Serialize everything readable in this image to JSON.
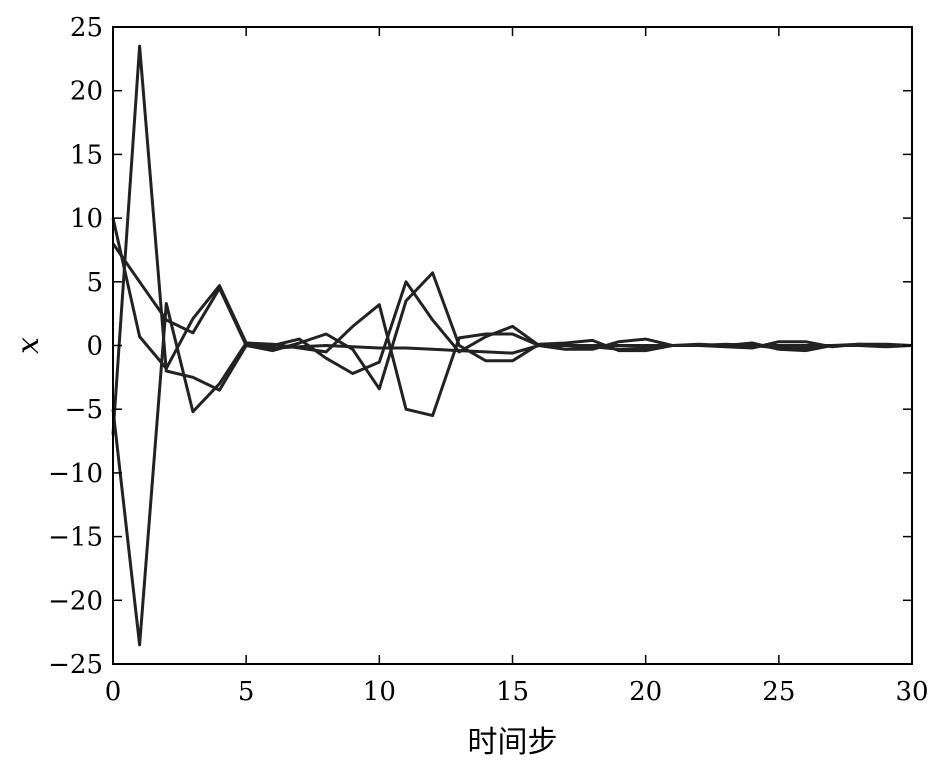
{
  "chart_data": {
    "type": "line",
    "title": "",
    "xlabel": "时间步",
    "ylabel": "x",
    "xlim": [
      0,
      30
    ],
    "ylim": [
      -25,
      25
    ],
    "xticks": [
      0,
      5,
      10,
      15,
      20,
      25,
      30
    ],
    "yticks": [
      25,
      20,
      15,
      10,
      5,
      0,
      -5,
      -10,
      -15,
      -20,
      -25
    ],
    "xtick_labels": [
      "0",
      "5",
      "10",
      "15",
      "20",
      "25",
      "30"
    ],
    "ytick_labels": [
      "25",
      "20",
      "15",
      "10",
      "5",
      "0",
      "−5",
      "−10",
      "−15",
      "−20",
      "−25"
    ],
    "grid": false,
    "line_color": "#222222",
    "series": [
      {
        "x": [
          0,
          1,
          2,
          3,
          4,
          5,
          6,
          7,
          8,
          9,
          10,
          11,
          12,
          13,
          14,
          15,
          16,
          17,
          18,
          19,
          20,
          21,
          22,
          23,
          24,
          25,
          26,
          27,
          28,
          29,
          30
        ],
        "values": [
          -7.0,
          23.5,
          -2.0,
          -2.5,
          -3.5,
          0.0,
          -0.2,
          -0.1,
          0.0,
          -0.1,
          -0.2,
          -0.2,
          -0.3,
          -0.4,
          -0.5,
          -0.6,
          0.0,
          0.0,
          0.0,
          0.0,
          0.0,
          0.0,
          0.0,
          0.0,
          0.0,
          0.0,
          0.0,
          0.0,
          0.0,
          0.0,
          0.0
        ]
      },
      {
        "x": [
          0,
          1,
          2,
          3,
          4,
          5,
          6,
          7,
          8,
          9,
          10,
          11,
          12,
          13,
          14,
          15,
          16,
          17,
          18,
          19,
          20,
          21,
          22,
          23,
          24,
          25,
          26,
          27,
          28,
          29,
          30
        ],
        "values": [
          -5.0,
          -23.5,
          3.3,
          -5.2,
          -3.0,
          0.2,
          0.0,
          0.5,
          -1.0,
          -2.2,
          -1.3,
          5.0,
          2.0,
          -0.5,
          0.7,
          1.5,
          0.0,
          -0.3,
          -0.3,
          0.3,
          0.5,
          0.0,
          0.0,
          -0.1,
          -0.2,
          0.3,
          0.3,
          -0.1,
          0.1,
          0.0,
          0.0
        ]
      },
      {
        "x": [
          0,
          1,
          2,
          3,
          4,
          5,
          6,
          7,
          8,
          9,
          10,
          11,
          12,
          13,
          14,
          15,
          16,
          17,
          18,
          19,
          20,
          21,
          22,
          23,
          24,
          25,
          26,
          27,
          28,
          29,
          30
        ],
        "values": [
          8.0,
          5.0,
          2.0,
          1.0,
          4.5,
          0.0,
          -0.4,
          0.2,
          0.9,
          -0.3,
          -3.4,
          3.5,
          5.7,
          0.0,
          -1.2,
          -1.2,
          0.1,
          0.2,
          0.4,
          -0.4,
          -0.4,
          0.0,
          0.1,
          0.0,
          0.2,
          -0.3,
          -0.4,
          0.0,
          0.0,
          -0.1,
          0.0
        ]
      },
      {
        "x": [
          0,
          1,
          2,
          3,
          4,
          5,
          6,
          7,
          8,
          9,
          10,
          11,
          12,
          13,
          14,
          15,
          16,
          17,
          18,
          19,
          20,
          21,
          22,
          23,
          24,
          25,
          26,
          27,
          28,
          29,
          30
        ],
        "values": [
          10.0,
          0.7,
          -1.8,
          2.1,
          4.7,
          0.2,
          0.1,
          -0.2,
          -0.5,
          1.5,
          3.2,
          -5.0,
          -5.5,
          0.6,
          0.9,
          0.9,
          0.0,
          -0.3,
          -0.1,
          -0.3,
          -0.2,
          0.0,
          0.0,
          0.1,
          0.0,
          -0.2,
          -0.2,
          0.0,
          0.1,
          0.1,
          0.0
        ]
      }
    ]
  }
}
